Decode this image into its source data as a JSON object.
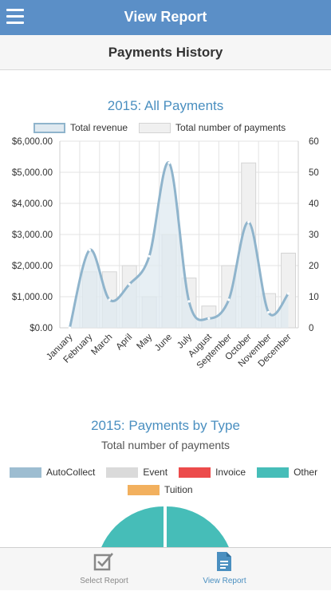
{
  "header": {
    "title": "View Report",
    "menu_icon": "hamburger-menu-icon"
  },
  "subheader": {
    "title": "Payments History"
  },
  "revenue_chart": {
    "title": "2015: All Payments",
    "legend": {
      "revenue": "Total revenue",
      "count": "Total number of payments"
    },
    "colors": {
      "line": "#8fb4cc",
      "fill": "#dfe9f0",
      "bars": "#f0f0f0",
      "bar_stroke": "#d4d4d4"
    }
  },
  "type_chart": {
    "title": "2015: Payments by Type",
    "subtitle": "Total number of payments",
    "legend": [
      {
        "label": "AutoCollect",
        "color": "#9dbdd1"
      },
      {
        "label": "Event",
        "color": "#dadada"
      },
      {
        "label": "Invoice",
        "color": "#ec4b4b"
      },
      {
        "label": "Other",
        "color": "#46bdb8"
      },
      {
        "label": "Tuition",
        "color": "#f2b05e"
      }
    ]
  },
  "chart_data": [
    {
      "type": "line",
      "title": "2015: All Payments",
      "categories": [
        "January",
        "February",
        "March",
        "April",
        "May",
        "June",
        "July",
        "August",
        "September",
        "October",
        "November",
        "December"
      ],
      "series": [
        {
          "name": "Total revenue",
          "type": "area",
          "axis": "left",
          "values": [
            0,
            2500,
            900,
            1400,
            2300,
            5300,
            850,
            300,
            900,
            3400,
            500,
            1100
          ]
        },
        {
          "name": "Total number of payments",
          "type": "bar",
          "axis": "right",
          "values": [
            0,
            18,
            18,
            20,
            10,
            30,
            16,
            7,
            20,
            53,
            11,
            24
          ]
        }
      ],
      "y_left_ticks": [
        "$0.00",
        "$1,000.00",
        "$2,000.00",
        "$3,000.00",
        "$4,000.00",
        "$5,000.00",
        "$6,000.00"
      ],
      "y_right_ticks": [
        "0",
        "10",
        "20",
        "30",
        "40",
        "50",
        "60"
      ],
      "ylim_left": [
        0,
        6000
      ],
      "ylim_right": [
        0,
        60
      ],
      "grid": true,
      "legend_position": "top"
    },
    {
      "type": "pie",
      "title": "2015: Payments by Type",
      "subtitle": "Total number of payments",
      "categories": [
        "AutoCollect",
        "Event",
        "Invoice",
        "Other",
        "Tuition"
      ],
      "legend_position": "top"
    }
  ],
  "tabs": [
    {
      "label": "Select Report",
      "icon": "checkbox-icon",
      "color": "#888888"
    },
    {
      "label": "View Report",
      "icon": "document-icon",
      "color": "#4a8fc0"
    }
  ]
}
